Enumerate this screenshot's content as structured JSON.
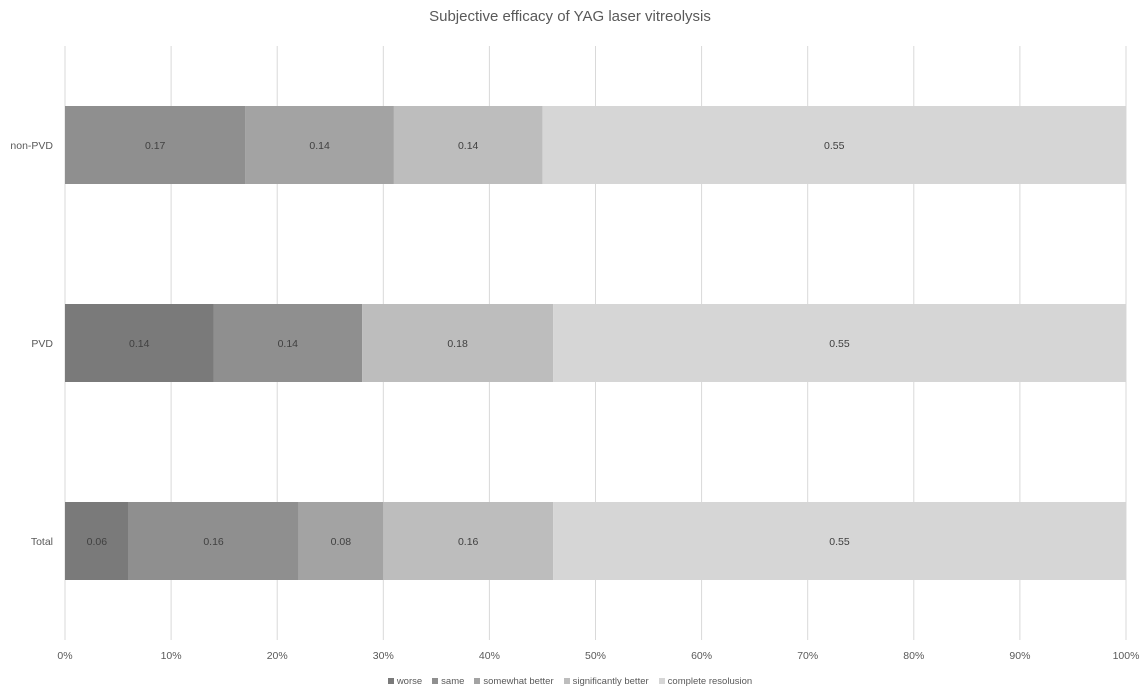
{
  "chart_data": {
    "type": "bar",
    "orientation": "horizontal",
    "stacked": "100%",
    "title": "Subjective  efficacy of YAG laser vitreolysis",
    "categories": [
      "non-PVD",
      "PVD",
      "Total"
    ],
    "series": [
      {
        "name": "worse",
        "color": "#7a7a7a",
        "values": [
          null,
          0.14,
          0.06
        ]
      },
      {
        "name": "same",
        "color": "#8f8f8f",
        "values": [
          0.17,
          0.14,
          0.16
        ]
      },
      {
        "name": "somewhat better",
        "color": "#a3a3a3",
        "values": [
          0.14,
          null,
          0.08
        ]
      },
      {
        "name": "significantly better",
        "color": "#bdbdbd",
        "values": [
          0.14,
          0.18,
          0.16
        ]
      },
      {
        "name": "complete resolusion",
        "color": "#d6d6d6",
        "values": [
          0.55,
          0.55,
          0.55
        ]
      }
    ],
    "xlim": [
      0,
      1
    ],
    "x_ticks": [
      "0%",
      "10%",
      "20%",
      "30%",
      "40%",
      "50%",
      "60%",
      "70%",
      "80%",
      "90%",
      "100%"
    ],
    "grid": true,
    "legend_position": "bottom"
  }
}
